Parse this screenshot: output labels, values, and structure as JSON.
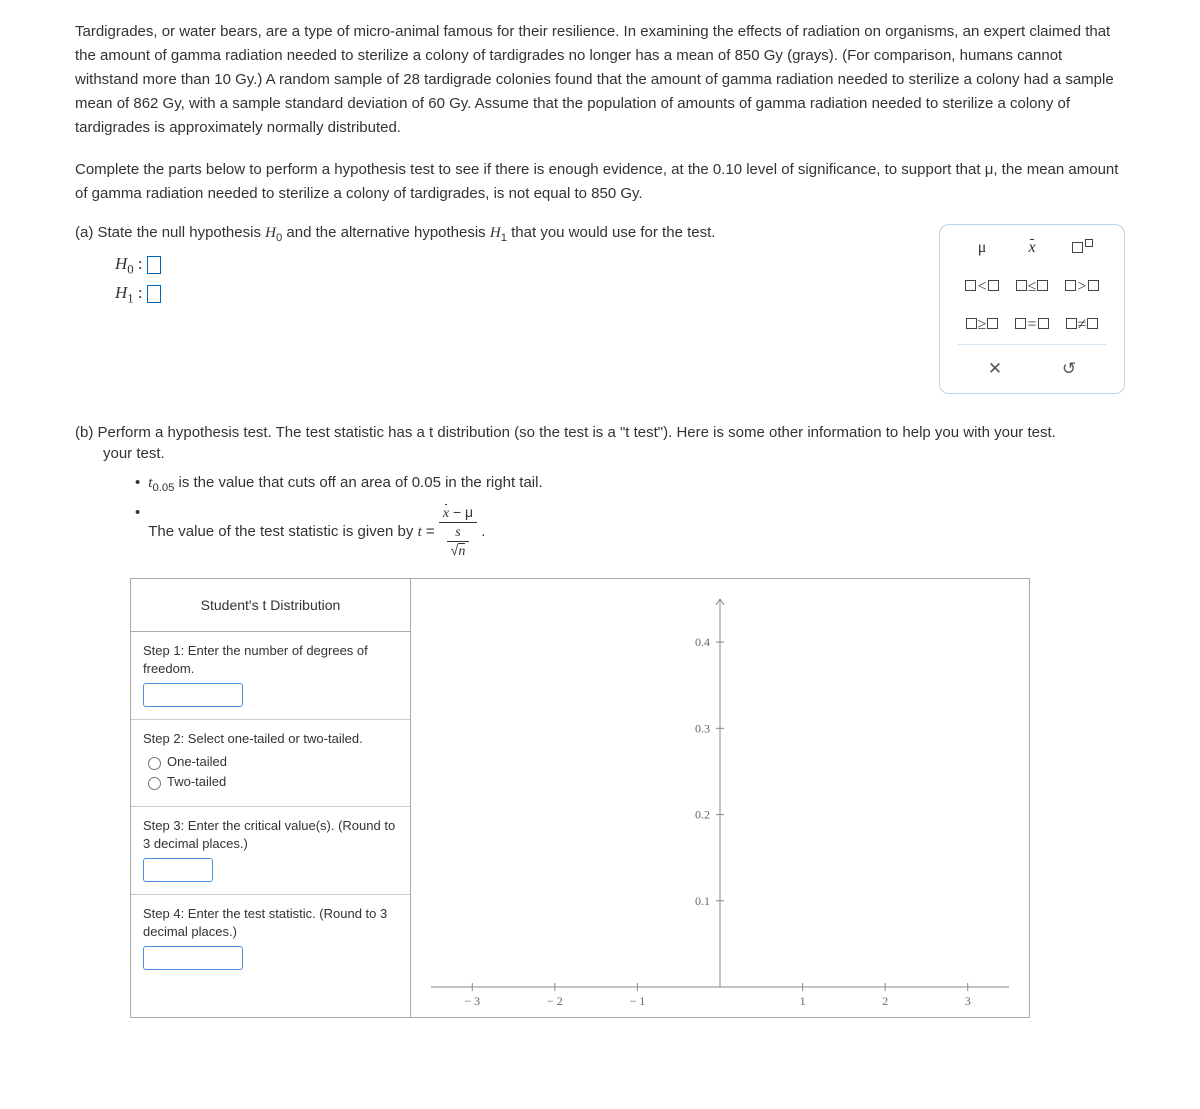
{
  "intro": {
    "p1": "Tardigrades, or water bears, are a type of micro-animal famous for their resilience. In examining the effects of radiation on organisms, an expert claimed that the amount of gamma radiation needed to sterilize a colony of tardigrades no longer has a mean of 850 Gy (grays). (For comparison, humans cannot withstand more than 10 Gy.) A random sample of 28 tardigrade colonies found that the amount of gamma radiation needed to sterilize a colony had a sample mean of 862 Gy, with a sample standard deviation of 60 Gy. Assume that the population of amounts of gamma radiation needed to sterilize a colony of tardigrades is approximately normally distributed.",
    "p2": "Complete the parts below to perform a hypothesis test to see if there is enough evidence, at the 0.10 level of significance, to support that μ, the mean amount of gamma radiation needed to sterilize a colony of tardigrades, is not equal to 850 Gy."
  },
  "part_a": {
    "prompt_prefix": "(a) State the null hypothesis ",
    "prompt_mid": " and the alternative hypothesis ",
    "prompt_suffix": " that you would use for the test.",
    "h0_label": "H",
    "h1_label": "H"
  },
  "palette": {
    "r1c1": "μ",
    "r1c2": "x̄",
    "r2c1": "□<□",
    "r2c2": "□≤□",
    "r2c3": "□>□",
    "r3c1": "□≥□",
    "r3c2": "□=□",
    "r3c3": "□≠□"
  },
  "part_b": {
    "prompt": "(b) Perform a hypothesis test. The test statistic has a t distribution (so the test is a \"t test\"). Here is some other information to help you with your test.",
    "bullet1_pre": "t",
    "bullet1_sub": "0.05",
    "bullet1_post": " is the value that cuts off an area of 0.05 in the right tail.",
    "bullet2": "The value of the test statistic is given by "
  },
  "widget": {
    "title": "Student's t Distribution",
    "step1": "Step 1: Enter the number of degrees of freedom.",
    "step2": "Step 2: Select one-tailed or two-tailed.",
    "opt1": "One-tailed",
    "opt2": "Two-tailed",
    "step3": "Step 3: Enter the critical value(s). (Round to 3 decimal places.)",
    "step4": "Step 4: Enter the test statistic. (Round to 3 decimal places.)"
  },
  "chart": {
    "x_ticks": [
      -3,
      -2,
      -1,
      1,
      2,
      3
    ],
    "y_ticks": [
      0.1,
      0.2,
      0.3,
      0.4
    ],
    "x_range": [
      -3.5,
      3.5
    ],
    "y_range": [
      0,
      0.45
    ],
    "axis_color": "#888",
    "tick_color": "#888",
    "label_color": "#666"
  }
}
